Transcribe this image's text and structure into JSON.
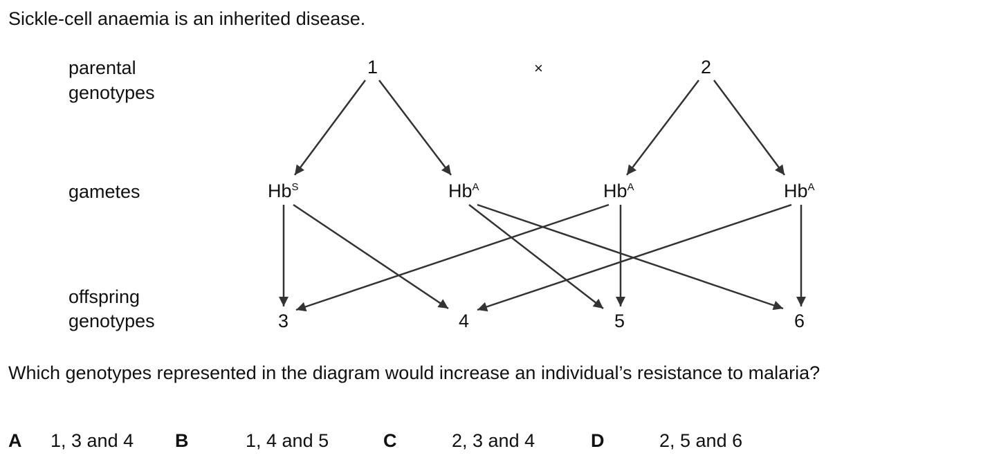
{
  "intro": "Sickle-cell anaemia is an inherited disease.",
  "labels": {
    "parental_line1": "parental",
    "parental_line2": "genotypes",
    "gametes": "gametes",
    "offspring_line1": "offspring",
    "offspring_line2": "genotypes"
  },
  "parents": {
    "p1": "1",
    "cross": "×",
    "p2": "2"
  },
  "gametes": [
    {
      "base": "Hb",
      "allele": "S"
    },
    {
      "base": "Hb",
      "allele": "A"
    },
    {
      "base": "Hb",
      "allele": "A"
    },
    {
      "base": "Hb",
      "allele": "A"
    }
  ],
  "offspring": [
    "3",
    "4",
    "5",
    "6"
  ],
  "question": "Which genotypes represented in the diagram would increase an individual’s resistance to malaria?",
  "options": [
    {
      "letter": "A",
      "text": "1, 3 and 4"
    },
    {
      "letter": "B",
      "text": "1, 4 and 5"
    },
    {
      "letter": "C",
      "text": "2, 3 and 4"
    },
    {
      "letter": "D",
      "text": "2, 5 and 6"
    }
  ],
  "colors": {
    "text": "#111111",
    "arrow": "#333333",
    "background": "#ffffff"
  }
}
